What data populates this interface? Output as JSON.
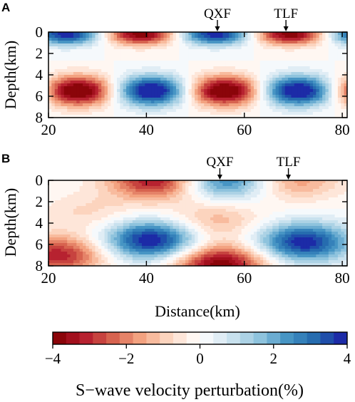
{
  "chart_data": [
    {
      "type": "heatmap",
      "panel_label": "A",
      "ylabel": "Depth(km)",
      "xlabel": "",
      "x_ticks": [
        20,
        40,
        60,
        80
      ],
      "y_ticks": [
        0,
        2,
        4,
        6,
        8
      ],
      "xlim": [
        20,
        81
      ],
      "ylim": [
        0,
        8
      ],
      "y_inverted": true,
      "value_range": [
        -4,
        4
      ],
      "description_model": "checkerboard",
      "features": [
        {
          "x": 24,
          "depth": 0.3,
          "value": 3.8
        },
        {
          "x": 39.5,
          "depth": 0.3,
          "value": -3.8
        },
        {
          "x": 55,
          "depth": 0.3,
          "value": 3.8
        },
        {
          "x": 69,
          "depth": 0.3,
          "value": -3.8
        },
        {
          "x": 82,
          "depth": 0.3,
          "value": 3.8
        },
        {
          "x": 26,
          "depth": 5.5,
          "value": -4.5
        },
        {
          "x": 41,
          "depth": 5.5,
          "value": 4.5
        },
        {
          "x": 55.5,
          "depth": 5.5,
          "value": -4.5
        },
        {
          "x": 70.5,
          "depth": 5.5,
          "value": 4.5
        },
        {
          "x": 83,
          "depth": 5.5,
          "value": -4.5
        }
      ],
      "faults": [
        {
          "name": "QXF",
          "x": 54.5
        },
        {
          "name": "TLF",
          "x": 68.5
        }
      ]
    },
    {
      "type": "heatmap",
      "panel_label": "B",
      "ylabel": "Depth(km)",
      "xlabel": "Distance(km)",
      "x_ticks": [
        20,
        40,
        60,
        80
      ],
      "y_ticks": [
        0,
        2,
        4,
        6,
        8
      ],
      "xlim": [
        20,
        81
      ],
      "ylim": [
        0,
        8
      ],
      "y_inverted": true,
      "value_range": [
        -4,
        4
      ],
      "features": [
        {
          "x": 42,
          "depth": 0,
          "value": -3.5
        },
        {
          "x": 56,
          "depth": 0,
          "value": 3
        },
        {
          "x": 70,
          "depth": 0,
          "value": -1.8
        },
        {
          "x": 41,
          "depth": 5.6,
          "value": 4.2
        },
        {
          "x": 72,
          "depth": 5.8,
          "value": 4
        },
        {
          "x": 22,
          "depth": 7,
          "value": -3.2
        },
        {
          "x": 55,
          "depth": 7.8,
          "value": -4
        },
        {
          "x": 28,
          "depth": 3,
          "value": -0.8
        },
        {
          "x": 54,
          "depth": 3.8,
          "value": -1.4
        }
      ],
      "faults": [
        {
          "name": "QXF",
          "x": 55
        },
        {
          "name": "TLF",
          "x": 69
        }
      ]
    }
  ],
  "colorbar": {
    "label": "S−wave velocity perturbation(%)",
    "ticks": [
      "−4",
      "−2",
      "0",
      "2",
      "4"
    ],
    "tick_values": [
      -4,
      -2,
      0,
      2,
      4
    ],
    "levels": 22,
    "stops": [
      "#7f0000",
      "#b2182b",
      "#d6604d",
      "#f4a582",
      "#fddbc7",
      "#ffffff",
      "#d1e5f0",
      "#92c5de",
      "#4393c3",
      "#2166ac",
      "#1a1aa6"
    ]
  }
}
